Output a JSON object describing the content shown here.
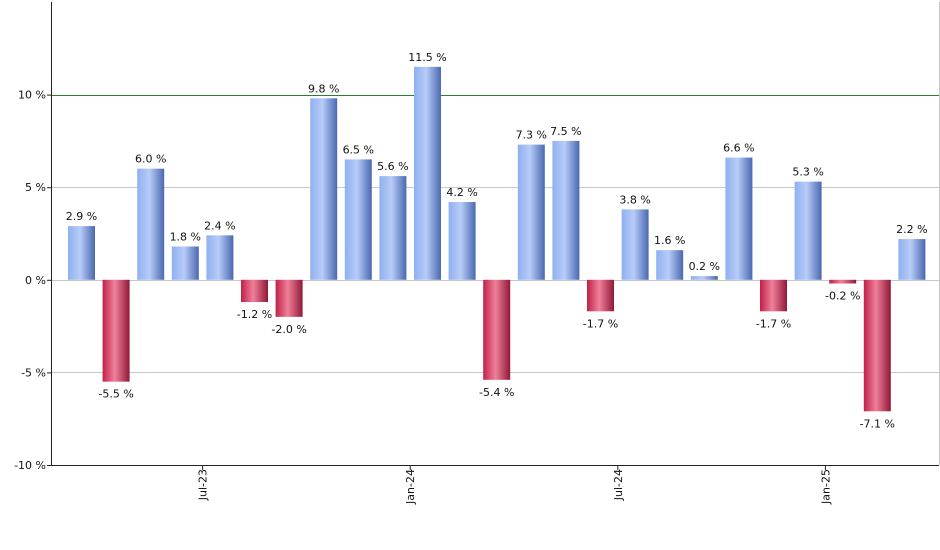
{
  "chart_data": {
    "type": "bar",
    "title": "",
    "xlabel": "",
    "ylabel": "",
    "ylim": [
      -10,
      15
    ],
    "y_ticks": [
      -10,
      -5,
      0,
      5,
      10
    ],
    "y_tick_labels": [
      "-10 %",
      "-5 %",
      "0 %",
      "5 %",
      "10 %"
    ],
    "value_suffix": " %",
    "reference_line": {
      "value": 10,
      "color": "#2e7d32"
    },
    "grid": true,
    "x_tick_labels": [
      {
        "label": "Jul-23",
        "index": 3.5
      },
      {
        "label": "Jan-24",
        "index": 9.5
      },
      {
        "label": "Jul-24",
        "index": 15.5
      },
      {
        "label": "Jan-25",
        "index": 21.5
      }
    ],
    "values": [
      2.9,
      -5.5,
      6.0,
      1.8,
      2.4,
      -1.2,
      -2.0,
      9.8,
      6.5,
      5.6,
      11.5,
      4.2,
      -5.4,
      7.3,
      7.5,
      -1.7,
      3.8,
      1.6,
      0.2,
      6.6,
      -1.7,
      5.3,
      -0.2,
      -7.1,
      2.2
    ],
    "colors": {
      "positive": "#7b9ee6",
      "negative": "#d9335a"
    }
  }
}
